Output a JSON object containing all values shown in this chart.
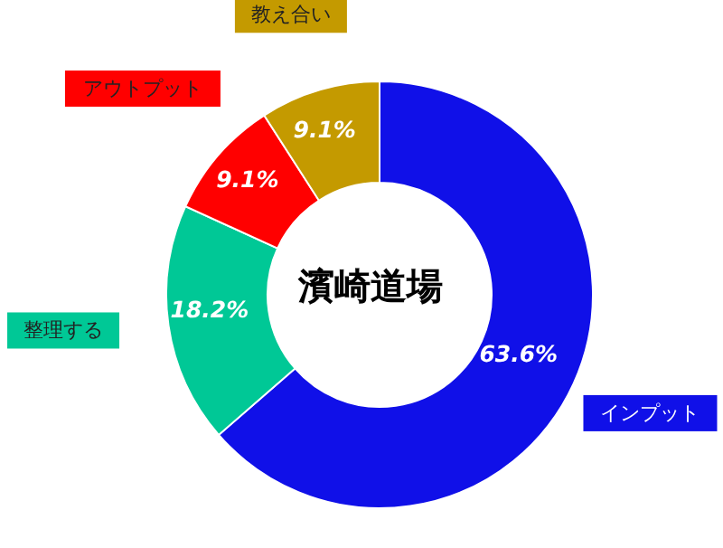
{
  "chart_data": {
    "type": "donut",
    "title": "濱崎道場",
    "categories": [
      "インプット",
      "整理する",
      "アウトプット",
      "教え合い"
    ],
    "values": [
      63.6,
      18.2,
      9.1,
      9.1
    ],
    "colors": [
      "#1010e8",
      "#00c896",
      "#ff0000",
      "#c49a00"
    ],
    "value_labels": [
      "63.6%",
      "18.2%",
      "9.1%",
      "9.1%"
    ]
  }
}
